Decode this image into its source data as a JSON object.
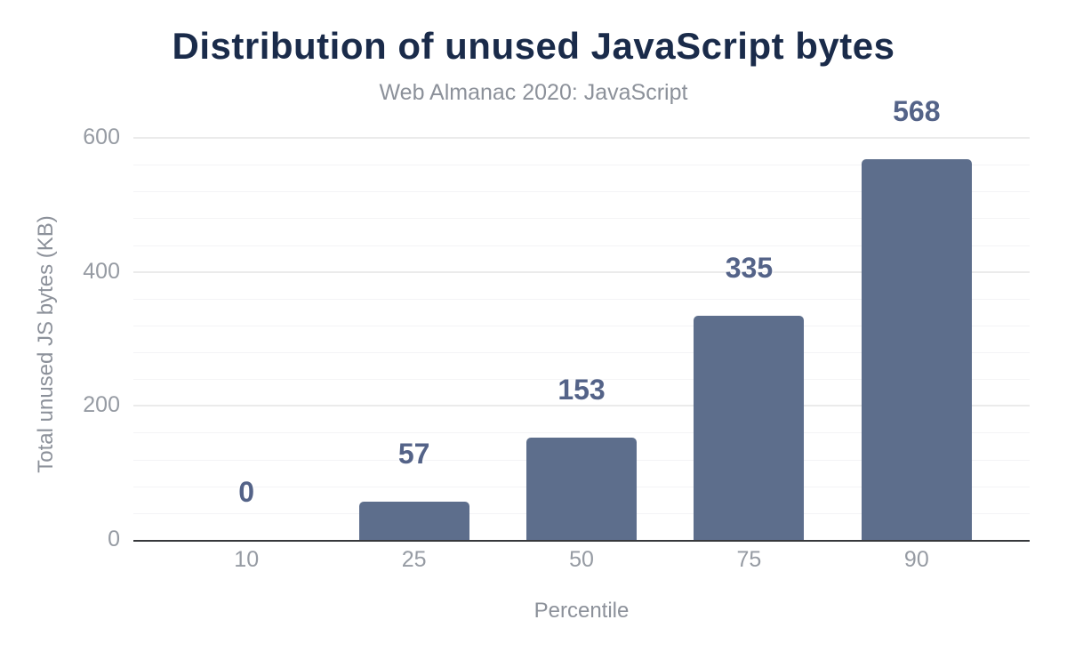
{
  "chart_data": {
    "type": "bar",
    "title": "Distribution of unused JavaScript bytes",
    "subtitle": "Web Almanac 2020: JavaScript",
    "xlabel": "Percentile",
    "ylabel": "Total unused JS bytes (KB)",
    "categories": [
      "10",
      "25",
      "50",
      "75",
      "90"
    ],
    "values": [
      0,
      57,
      153,
      335,
      568
    ],
    "value_labels": [
      "0",
      "57",
      "153",
      "335",
      "568"
    ],
    "ylim": [
      0,
      620
    ],
    "yticks": [
      0,
      200,
      400,
      600
    ],
    "minor_grid_step": 40,
    "major_grid_step": 200,
    "grid": true,
    "legend": "none",
    "colors": {
      "bar": "#5d6e8c",
      "value_label": "#546388",
      "title": "#1a2b4a",
      "subtitle": "#8c919a",
      "tick_label": "#969ba3",
      "axis_line": "#37393c",
      "grid_major": "#ebebeb",
      "grid_minor": "#f4f4f6",
      "background": "#ffffff"
    }
  }
}
